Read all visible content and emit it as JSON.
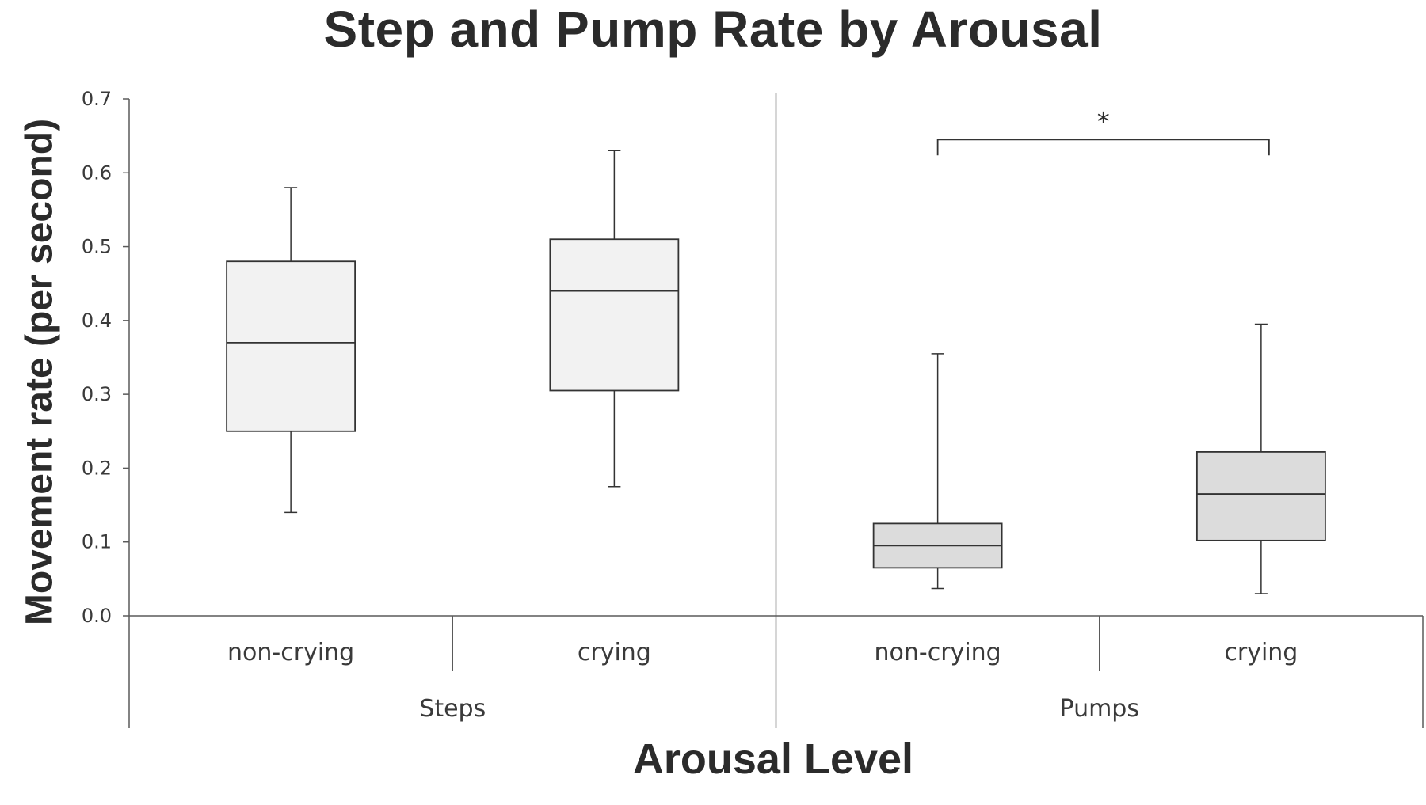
{
  "chart_data": {
    "type": "boxplot",
    "title": "Step and Pump Rate by Arousal",
    "xlabel": "Arousal Level",
    "ylabel": "Movement rate (per second)",
    "ylim": [
      0,
      0.7
    ],
    "yticks": [
      "0.0",
      "0.1",
      "0.2",
      "0.3",
      "0.4",
      "0.5",
      "0.6",
      "0.7"
    ],
    "groups": [
      "Steps",
      "Pumps"
    ],
    "categories": [
      "non-crying",
      "crying"
    ],
    "boxes": [
      {
        "group": "Steps",
        "category": "non-crying",
        "min": 0.14,
        "q1": 0.25,
        "median": 0.37,
        "q3": 0.48,
        "max": 0.58,
        "fill": "#f2f2f2"
      },
      {
        "group": "Steps",
        "category": "crying",
        "min": 0.175,
        "q1": 0.305,
        "median": 0.44,
        "q3": 0.51,
        "max": 0.63,
        "fill": "#f2f2f2"
      },
      {
        "group": "Pumps",
        "category": "non-crying",
        "min": 0.037,
        "q1": 0.065,
        "median": 0.095,
        "q3": 0.125,
        "max": 0.355,
        "fill": "#dcdcdc"
      },
      {
        "group": "Pumps",
        "category": "crying",
        "min": 0.03,
        "q1": 0.102,
        "median": 0.165,
        "q3": 0.222,
        "max": 0.395,
        "fill": "#dcdcdc"
      }
    ],
    "significance": {
      "label": "*",
      "group": "Pumps",
      "between": [
        "non-crying",
        "crying"
      ],
      "bracket_y": 0.645
    },
    "grid": false,
    "legend": "none"
  }
}
